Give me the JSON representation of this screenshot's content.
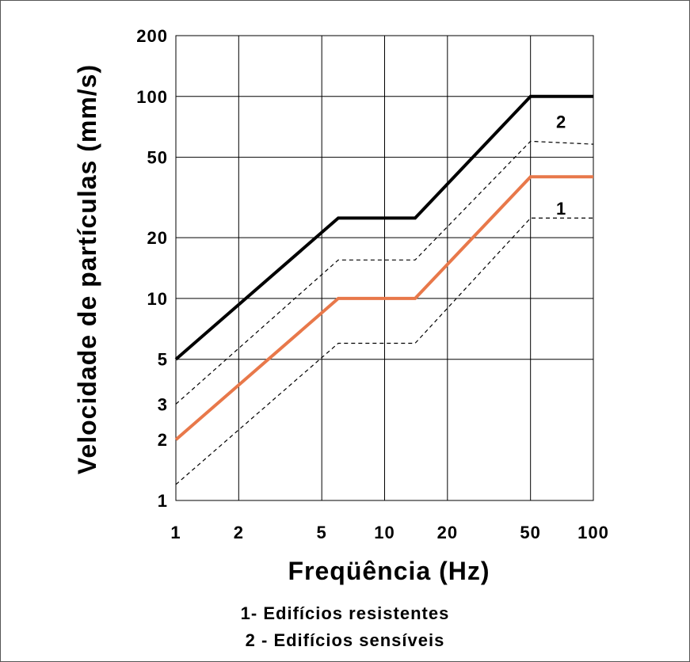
{
  "chart_data": {
    "type": "line",
    "x_scale": "log",
    "y_scale": "log",
    "xlim": [
      1,
      100
    ],
    "ylim": [
      1,
      200
    ],
    "x_ticks": [
      1,
      2,
      5,
      10,
      20,
      50,
      100
    ],
    "x_tick_labels": [
      "1",
      "2",
      "5",
      "10",
      "20",
      "50",
      "100"
    ],
    "y_ticks": [
      1,
      2,
      3,
      5,
      10,
      20,
      50,
      100,
      200
    ],
    "y_tick_labels": [
      "1",
      "2",
      "3",
      "5",
      "10",
      "20",
      "50",
      "100",
      "200"
    ],
    "xlabel": "Freqüência (Hz)",
    "ylabel": "Velocidade de partículas (mm/s)",
    "grid": true,
    "series": [
      {
        "name": "2",
        "style": "solid",
        "color": "#000000",
        "x": [
          1,
          6,
          14,
          50,
          100
        ],
        "y": [
          5,
          25,
          25,
          100,
          100
        ]
      },
      {
        "name": "",
        "style": "dashed",
        "color": "#000000",
        "x": [
          1,
          6,
          14,
          50,
          100
        ],
        "y": [
          3,
          15.5,
          15.5,
          60,
          58
        ]
      },
      {
        "name": "1",
        "style": "solid",
        "color": "#e8784a",
        "x": [
          1,
          6,
          14,
          50,
          100
        ],
        "y": [
          2,
          10,
          10,
          40,
          40
        ]
      },
      {
        "name": "",
        "style": "dashed",
        "color": "#000000",
        "x": [
          1,
          6,
          14,
          50,
          100
        ],
        "y": [
          1.2,
          6,
          6,
          25,
          25
        ]
      }
    ],
    "curve_labels": [
      {
        "text": "2",
        "x": 70,
        "y": 75
      },
      {
        "text": "1",
        "x": 70,
        "y": 28
      }
    ],
    "legend": [
      "1- Edifícios resistentes",
      "2 - Edifícios sensíveis"
    ]
  }
}
